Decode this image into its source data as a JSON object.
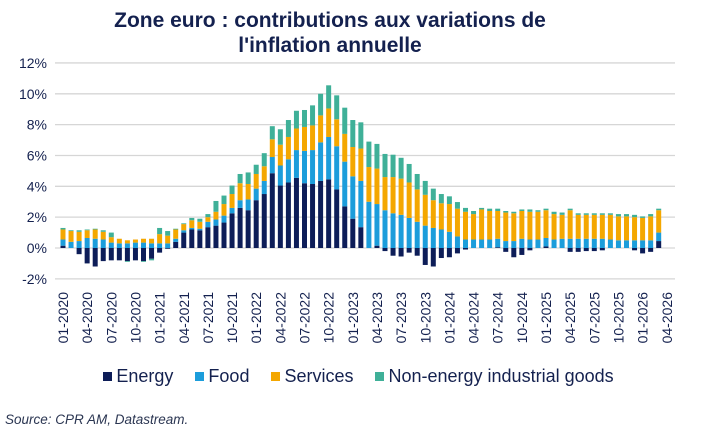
{
  "chart_data": {
    "type": "bar",
    "stacked": true,
    "title": "Zone euro : contributions aux variations de l'inflation annuelle",
    "title_lines": [
      "Zone euro : contributions aux variations de",
      "l'inflation annuelle"
    ],
    "xlabel": "",
    "ylabel": "",
    "ylim": [
      -2,
      12
    ],
    "yticks": [
      "-2%",
      "0%",
      "2%",
      "4%",
      "6%",
      "8%",
      "10%",
      "12%"
    ],
    "ytick_values": [
      -2,
      0,
      2,
      4,
      6,
      8,
      10,
      12
    ],
    "grid": true,
    "legend_position": "bottom",
    "x_range": [
      "01-2020",
      "04-2026"
    ],
    "xtick_labels": [
      "01-2020",
      "04-2020",
      "07-2020",
      "10-2020",
      "01-2021",
      "04-2021",
      "07-2021",
      "10-2021",
      "01-2022",
      "04-2022",
      "07-2022",
      "10-2022",
      "01-2023",
      "04-2023",
      "07-2023",
      "10-2023",
      "01-2024",
      "04-2024",
      "07-2024",
      "10-2024",
      "01-2025",
      "04-2025",
      "07-2025",
      "10-2025",
      "01-2026",
      "04-2026"
    ],
    "categories_start": "01-2020",
    "series": [
      {
        "name": "Energy",
        "color": "#0d1d58",
        "values": [
          0.15,
          0.0,
          -0.4,
          -1.0,
          -1.2,
          -0.85,
          -0.8,
          -0.8,
          -0.85,
          -0.8,
          -0.85,
          -0.7,
          -0.3,
          -0.05,
          0.4,
          1.0,
          1.2,
          1.15,
          1.35,
          1.45,
          1.65,
          2.25,
          2.6,
          2.45,
          3.1,
          3.5,
          4.85,
          4.05,
          4.25,
          4.55,
          4.2,
          4.15,
          4.35,
          4.45,
          3.8,
          2.7,
          1.9,
          1.35,
          0.0,
          0.15,
          -0.2,
          -0.5,
          -0.55,
          -0.3,
          -0.5,
          -1.1,
          -1.2,
          -0.65,
          -0.6,
          -0.35,
          -0.1,
          0,
          0,
          0,
          0.05,
          -0.25,
          -0.6,
          -0.45,
          -0.15,
          0,
          0.1,
          0,
          0,
          -0.25,
          -0.25,
          -0.2,
          -0.2,
          -0.15,
          0,
          0,
          0,
          -0.15,
          -0.35,
          -0.25,
          0.45
        ]
      },
      {
        "name": "Food",
        "color": "#1c9ddb",
        "values": [
          0.4,
          0.4,
          0.45,
          0.65,
          0.6,
          0.55,
          0.35,
          0.3,
          0.3,
          0.35,
          0.35,
          0.3,
          0.3,
          0.3,
          0.2,
          0.15,
          0.1,
          0.1,
          0.35,
          0.4,
          0.45,
          0.35,
          0.5,
          0.7,
          0.75,
          0.85,
          1.05,
          1.3,
          1.5,
          1.8,
          2.1,
          2.2,
          2.5,
          2.75,
          2.8,
          2.9,
          2.75,
          3.0,
          3.0,
          2.7,
          2.45,
          2.25,
          2.15,
          1.95,
          1.7,
          1.45,
          1.3,
          1.2,
          1.05,
          0.75,
          0.55,
          0.55,
          0.55,
          0.55,
          0.55,
          0.45,
          0.45,
          0.6,
          0.55,
          0.55,
          0.55,
          0.55,
          0.6,
          0.6,
          0.6,
          0.6,
          0.6,
          0.6,
          0.55,
          0.5,
          0.5,
          0.5,
          0.5,
          0.5,
          0.55
        ]
      },
      {
        "name": "Services",
        "color": "#f4a700",
        "values": [
          0.65,
          0.7,
          0.6,
          0.5,
          0.6,
          0.5,
          0.35,
          0.3,
          0.2,
          0.2,
          0.25,
          0.3,
          0.6,
          0.5,
          0.6,
          0.4,
          0.5,
          0.45,
          0.3,
          0.5,
          0.75,
          0.9,
          1.1,
          1.0,
          0.95,
          0.95,
          1.15,
          1.35,
          1.45,
          1.4,
          1.55,
          1.6,
          1.75,
          1.85,
          1.75,
          1.8,
          1.9,
          2.1,
          2.25,
          2.3,
          2.15,
          2.35,
          2.35,
          2.3,
          2.1,
          2.0,
          1.8,
          1.7,
          1.8,
          1.8,
          1.8,
          1.65,
          1.95,
          1.85,
          1.8,
          1.85,
          1.8,
          1.8,
          1.8,
          1.8,
          1.8,
          1.65,
          1.55,
          1.85,
          1.55,
          1.55,
          1.55,
          1.55,
          1.6,
          1.55,
          1.55,
          1.5,
          1.45,
          1.55,
          1.45
        ]
      },
      {
        "name": "Non-energy industrial goods",
        "color": "#3fb098",
        "values": [
          0.1,
          0.05,
          0.1,
          0.05,
          0.05,
          0.1,
          0.3,
          0.0,
          -0.05,
          0,
          -0.05,
          -0.1,
          0.4,
          0.3,
          0.05,
          0.05,
          0.15,
          0.2,
          0.2,
          0.7,
          0.55,
          0.55,
          0.6,
          0.75,
          0.6,
          0.85,
          0.85,
          1.0,
          1.1,
          1.15,
          1.1,
          1.3,
          1.4,
          1.5,
          1.55,
          1.7,
          1.75,
          1.7,
          1.65,
          1.6,
          1.5,
          1.45,
          1.35,
          1.2,
          1.0,
          0.9,
          0.75,
          0.6,
          0.5,
          0.43,
          0.25,
          0.2,
          0.1,
          0.15,
          0.15,
          0.1,
          0.1,
          0.1,
          0.15,
          0.1,
          0.1,
          0.15,
          0.15,
          0.1,
          0.1,
          0.1,
          0.1,
          0.1,
          0.1,
          0.15,
          0.15,
          0.15,
          0.1,
          0.15,
          0.1
        ]
      }
    ]
  },
  "source": "Source: CPR AM, Datastream."
}
